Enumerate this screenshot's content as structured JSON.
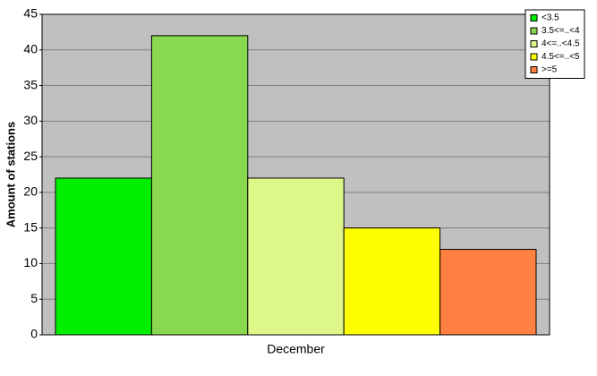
{
  "chart_data": {
    "type": "bar",
    "y_label": "Amount of stations",
    "categories": [
      "December"
    ],
    "series": [
      {
        "name": "<3.5",
        "color": "#00ee00",
        "values": [
          22
        ]
      },
      {
        "name": "3.5<=..<4",
        "color": "#88d850",
        "values": [
          42
        ]
      },
      {
        "name": "4<=..<4.5",
        "color": "#ddf888",
        "values": [
          22
        ]
      },
      {
        "name": "4.5<=..<5",
        "color": "#ffff00",
        "values": [
          15
        ]
      },
      {
        "name": ">=5",
        "color": "#ff8040",
        "values": [
          12
        ]
      }
    ],
    "ylim": [
      0,
      45
    ],
    "yticks": [
      0,
      5,
      10,
      15,
      20,
      25,
      30,
      35,
      40,
      45
    ],
    "grid": true,
    "legend": "top-right"
  }
}
